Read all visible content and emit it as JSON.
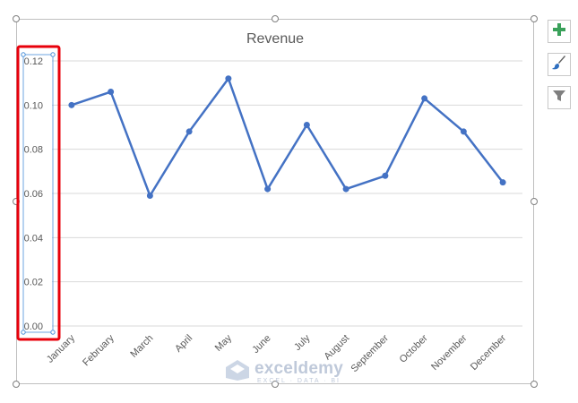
{
  "colors": {
    "series": "#4472C4",
    "gridline": "#d9d9d9",
    "axis_text": "#595959",
    "title_text": "#595959",
    "selection_box": "#e8000b",
    "selection_handle": "#4a90d9",
    "add_button": "#3aa15a",
    "brush_button": "#2f6fbf"
  },
  "toolbar": {
    "add_icon": "plus-icon",
    "style_icon": "brush-icon",
    "filter_icon": "funnel-icon"
  },
  "watermark": {
    "name": "exceldemy",
    "tagline": "EXCEL · DATA · BI"
  },
  "chart_data": {
    "type": "line",
    "title": "Revenue",
    "xlabel": "",
    "ylabel": "",
    "categories": [
      "January",
      "February",
      "March",
      "April",
      "May",
      "June",
      "July",
      "August",
      "September",
      "October",
      "November",
      "December"
    ],
    "series": [
      {
        "values": [
          0.1,
          0.106,
          0.059,
          0.088,
          0.112,
          0.062,
          0.091,
          0.062,
          0.068,
          0.103,
          0.088,
          0.065
        ]
      }
    ],
    "ylim": [
      0,
      0.12
    ],
    "yticks": [
      "0.00",
      "0.02",
      "0.04",
      "0.06",
      "0.08",
      "0.10",
      "0.12"
    ],
    "grid": true,
    "legend": "none",
    "selected_element": "vertical axis"
  }
}
